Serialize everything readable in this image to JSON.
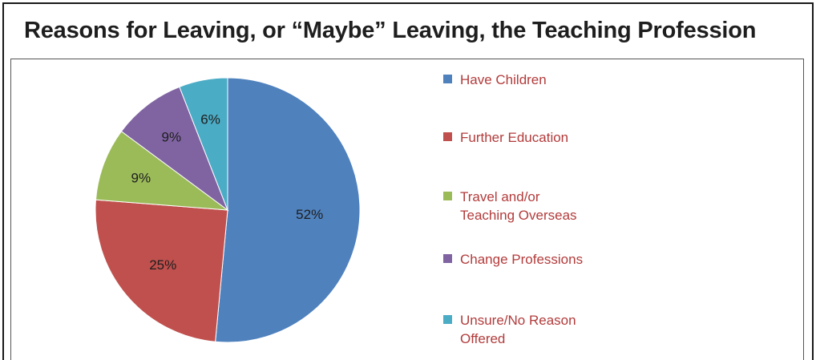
{
  "chart_data": {
    "type": "pie",
    "title": "Reasons for Leaving, or “Maybe” Leaving, the Teaching Profession",
    "categories": [
      "Have Children",
      "Further Education",
      "Travel and/or Teaching Overseas",
      "Change Professions",
      "Unsure/No Reason Offered"
    ],
    "legend_lines": [
      [
        "Have Children"
      ],
      [
        "Further Education"
      ],
      [
        "Travel and/or",
        "Teaching Overseas"
      ],
      [
        "Change Professions"
      ],
      [
        "Unsure/No Reason",
        "Offered"
      ]
    ],
    "values": [
      52,
      25,
      9,
      9,
      6
    ],
    "labels": [
      "52%",
      "25%",
      "9%",
      "9%",
      "6%"
    ],
    "colors": [
      "#4f81bd",
      "#c0504d",
      "#9bbb59",
      "#8064a2",
      "#4bacc6"
    ],
    "legend_position": "right"
  }
}
